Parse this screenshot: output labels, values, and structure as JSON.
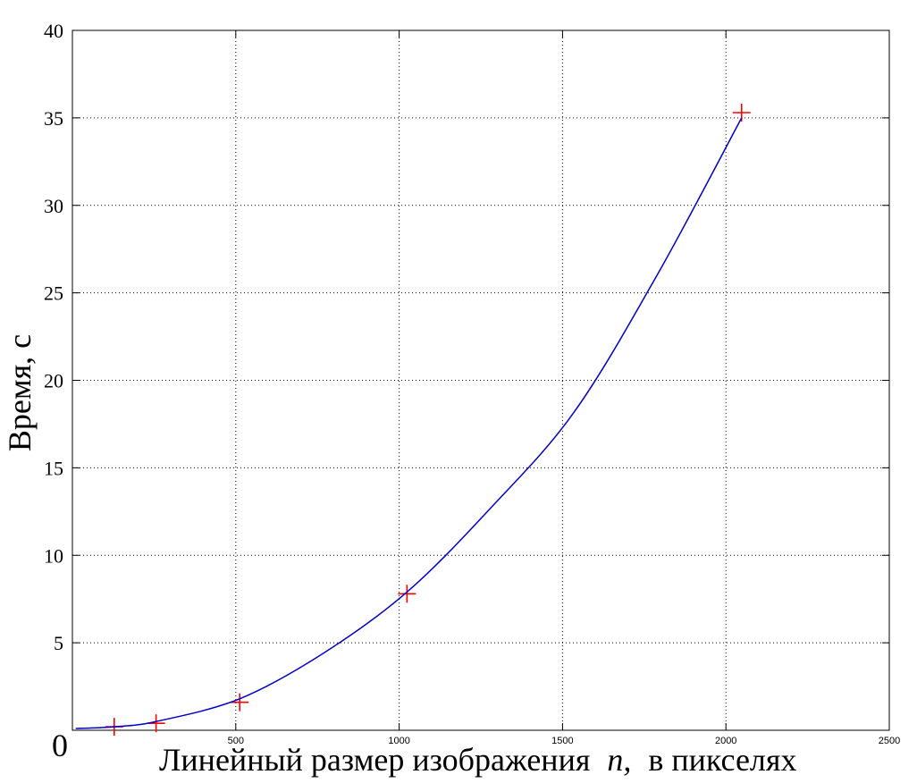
{
  "chart_data": {
    "type": "scatter",
    "title": "",
    "xlabel": "Линейный размер изображения",
    "xlabel_var": "n,",
    "xlabel_suffix": "в пикселях",
    "ylabel": "Время, с",
    "xlim": [
      0,
      2500
    ],
    "ylim": [
      0,
      40
    ],
    "xticks": [
      500,
      1000,
      1500,
      2000,
      2500
    ],
    "yticks": [
      0,
      5,
      10,
      15,
      20,
      25,
      30,
      35,
      40
    ],
    "grid": true,
    "legend": "none",
    "series": [
      {
        "kind": "markers",
        "marker": "plus",
        "color": "#ff0000",
        "x": [
          128,
          256,
          512,
          1024,
          2048
        ],
        "y": [
          0.2,
          0.4,
          1.6,
          7.8,
          35.3
        ]
      },
      {
        "kind": "fitted-curve",
        "color": "#0000cc",
        "x": [
          10,
          128,
          256,
          512,
          768,
          1024,
          1280,
          1536,
          1792,
          2048
        ],
        "y": [
          0.1,
          0.2,
          0.5,
          1.8,
          4.4,
          7.9,
          12.7,
          18.2,
          26.1,
          35.0
        ]
      }
    ]
  }
}
